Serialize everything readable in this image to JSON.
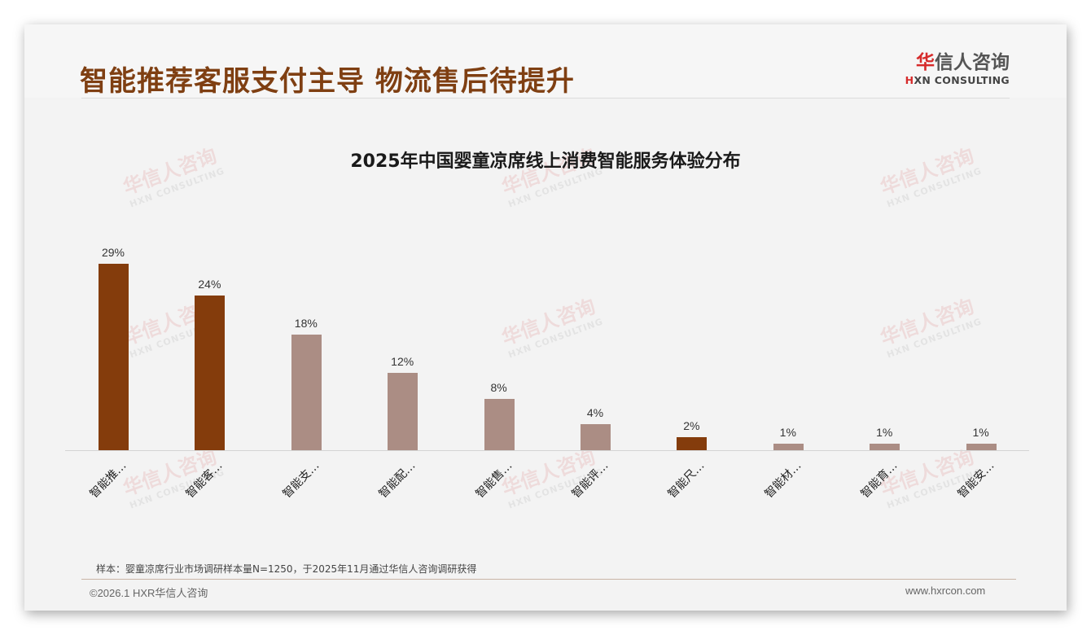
{
  "header": {
    "title": "智能推荐客服支付主导 物流售后待提升",
    "logo_cn_highlight": "华",
    "logo_cn_rest": "信人咨询",
    "logo_en_highlight": "H",
    "logo_en_rest": "XN CONSULTING"
  },
  "watermark": {
    "cn": "华信人咨询",
    "en": "HXN CONSULTING"
  },
  "colors": {
    "title": "#7f3f12",
    "bar_highlight": "#843c0c",
    "bar_normal": "#ab8d84",
    "background": "#f3f3f3"
  },
  "chart_data": {
    "type": "bar",
    "title": "2025年中国婴童凉席线上消费智能服务体验分布",
    "xlabel": "",
    "ylabel": "",
    "ylim": [
      0,
      30
    ],
    "grid": false,
    "legend": null,
    "categories": [
      "智能推…",
      "智能客…",
      "智能支…",
      "智能配…",
      "智能售…",
      "智能评…",
      "智能尺…",
      "智能材…",
      "智能育…",
      "智能安…"
    ],
    "values": [
      29,
      24,
      18,
      12,
      8,
      4,
      2,
      1,
      1,
      1
    ],
    "value_labels": [
      "29%",
      "24%",
      "18%",
      "12%",
      "8%",
      "4%",
      "2%",
      "1%",
      "1%",
      "1%"
    ],
    "highlighted": [
      true,
      true,
      false,
      false,
      false,
      false,
      true,
      false,
      false,
      false
    ],
    "unit": "%"
  },
  "footer": {
    "note": "样本：婴童凉席行业市场调研样本量N=1250，于2025年11月通过华信人咨询调研获得",
    "copyright": "©2026.1 HXR华信人咨询",
    "website": "www.hxrcon.com"
  }
}
